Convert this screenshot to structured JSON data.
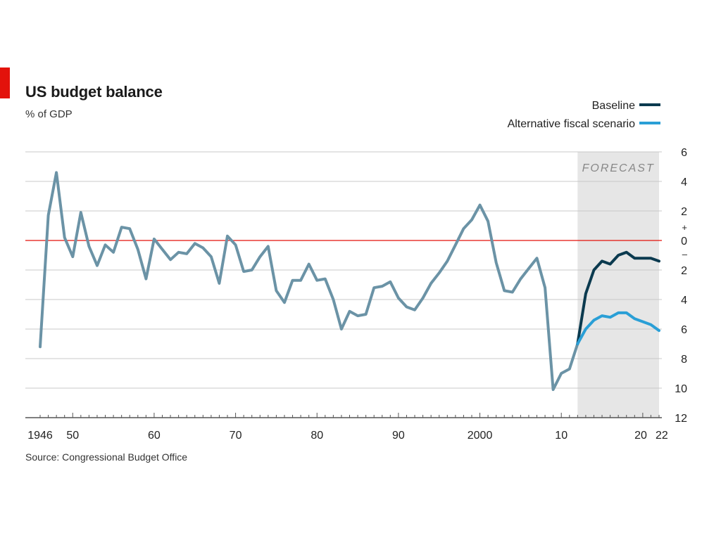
{
  "header": {
    "title": "US budget balance",
    "subtitle": "% of GDP"
  },
  "legend": {
    "items": [
      {
        "label": "Baseline",
        "color": "#0b3a4f"
      },
      {
        "label": "Alternative fiscal scenario",
        "color": "#2a9fd6"
      }
    ]
  },
  "footer": {
    "source": "Source: Congressional Budget Office"
  },
  "chart_data": {
    "type": "line",
    "title": "US budget balance",
    "subtitle": "% of GDP",
    "xlabel": "",
    "ylabel": "",
    "xlim": [
      1946,
      2022
    ],
    "ylim": [
      -12,
      6
    ],
    "y_ticks": [
      {
        "value": 6,
        "label": "6"
      },
      {
        "value": 4,
        "label": "4"
      },
      {
        "value": 2,
        "label": "2"
      },
      {
        "value": 0,
        "label": "0"
      },
      {
        "value": -2,
        "label": "2"
      },
      {
        "value": -4,
        "label": "4"
      },
      {
        "value": -6,
        "label": "6"
      },
      {
        "value": -8,
        "label": "8"
      },
      {
        "value": -10,
        "label": "10"
      },
      {
        "value": -12,
        "label": "12"
      }
    ],
    "y_sign_labels": {
      "plus": "+",
      "minus": "–"
    },
    "x_ticks": [
      {
        "value": 1946,
        "label": "1946"
      },
      {
        "value": 1950,
        "label": "50"
      },
      {
        "value": 1960,
        "label": "60"
      },
      {
        "value": 1970,
        "label": "70"
      },
      {
        "value": 1980,
        "label": "80"
      },
      {
        "value": 1990,
        "label": "90"
      },
      {
        "value": 2000,
        "label": "2000"
      },
      {
        "value": 2010,
        "label": "10"
      },
      {
        "value": 2020,
        "label": "20"
      },
      {
        "value": 2022,
        "label": "22"
      }
    ],
    "forecast": {
      "label": "FORECAST",
      "start": 2012,
      "end": 2022
    },
    "zero_line_color": "#e3120b",
    "grid": true,
    "legend_position": "top-right",
    "series": [
      {
        "name": "Historical",
        "color": "#6b93a6",
        "x": [
          1946,
          1947,
          1948,
          1949,
          1950,
          1951,
          1952,
          1953,
          1954,
          1955,
          1956,
          1957,
          1958,
          1959,
          1960,
          1961,
          1962,
          1963,
          1964,
          1965,
          1966,
          1967,
          1968,
          1969,
          1970,
          1971,
          1972,
          1973,
          1974,
          1975,
          1976,
          1977,
          1978,
          1979,
          1980,
          1981,
          1982,
          1983,
          1984,
          1985,
          1986,
          1987,
          1988,
          1989,
          1990,
          1991,
          1992,
          1993,
          1994,
          1995,
          1996,
          1997,
          1998,
          1999,
          2000,
          2001,
          2002,
          2003,
          2004,
          2005,
          2006,
          2007,
          2008,
          2009,
          2010,
          2011,
          2012
        ],
        "values": [
          -7.2,
          1.7,
          4.6,
          0.2,
          -1.1,
          1.9,
          -0.4,
          -1.7,
          -0.3,
          -0.8,
          0.9,
          0.8,
          -0.6,
          -2.6,
          0.1,
          -0.6,
          -1.3,
          -0.8,
          -0.9,
          -0.2,
          -0.5,
          -1.1,
          -2.9,
          0.3,
          -0.3,
          -2.1,
          -2.0,
          -1.1,
          -0.4,
          -3.4,
          -4.2,
          -2.7,
          -2.7,
          -1.6,
          -2.7,
          -2.6,
          -4.0,
          -6.0,
          -4.8,
          -5.1,
          -5.0,
          -3.2,
          -3.1,
          -2.8,
          -3.9,
          -4.5,
          -4.7,
          -3.9,
          -2.9,
          -2.2,
          -1.4,
          -0.3,
          0.8,
          1.4,
          2.4,
          1.3,
          -1.5,
          -3.4,
          -3.5,
          -2.6,
          -1.9,
          -1.2,
          -3.2,
          -10.1,
          -9.0,
          -8.7,
          -7.0
        ]
      },
      {
        "name": "Baseline",
        "color": "#0b3a4f",
        "x": [
          2012,
          2013,
          2014,
          2015,
          2016,
          2017,
          2018,
          2019,
          2020,
          2021,
          2022
        ],
        "values": [
          -7.0,
          -3.6,
          -2.0,
          -1.4,
          -1.6,
          -1.0,
          -0.8,
          -1.2,
          -1.2,
          -1.2,
          -1.4
        ]
      },
      {
        "name": "Alternative fiscal scenario",
        "color": "#2a9fd6",
        "x": [
          2012,
          2013,
          2014,
          2015,
          2016,
          2017,
          2018,
          2019,
          2020,
          2021,
          2022
        ],
        "values": [
          -7.0,
          -6.0,
          -5.4,
          -5.1,
          -5.2,
          -4.9,
          -4.9,
          -5.3,
          -5.5,
          -5.7,
          -6.1
        ]
      }
    ]
  }
}
